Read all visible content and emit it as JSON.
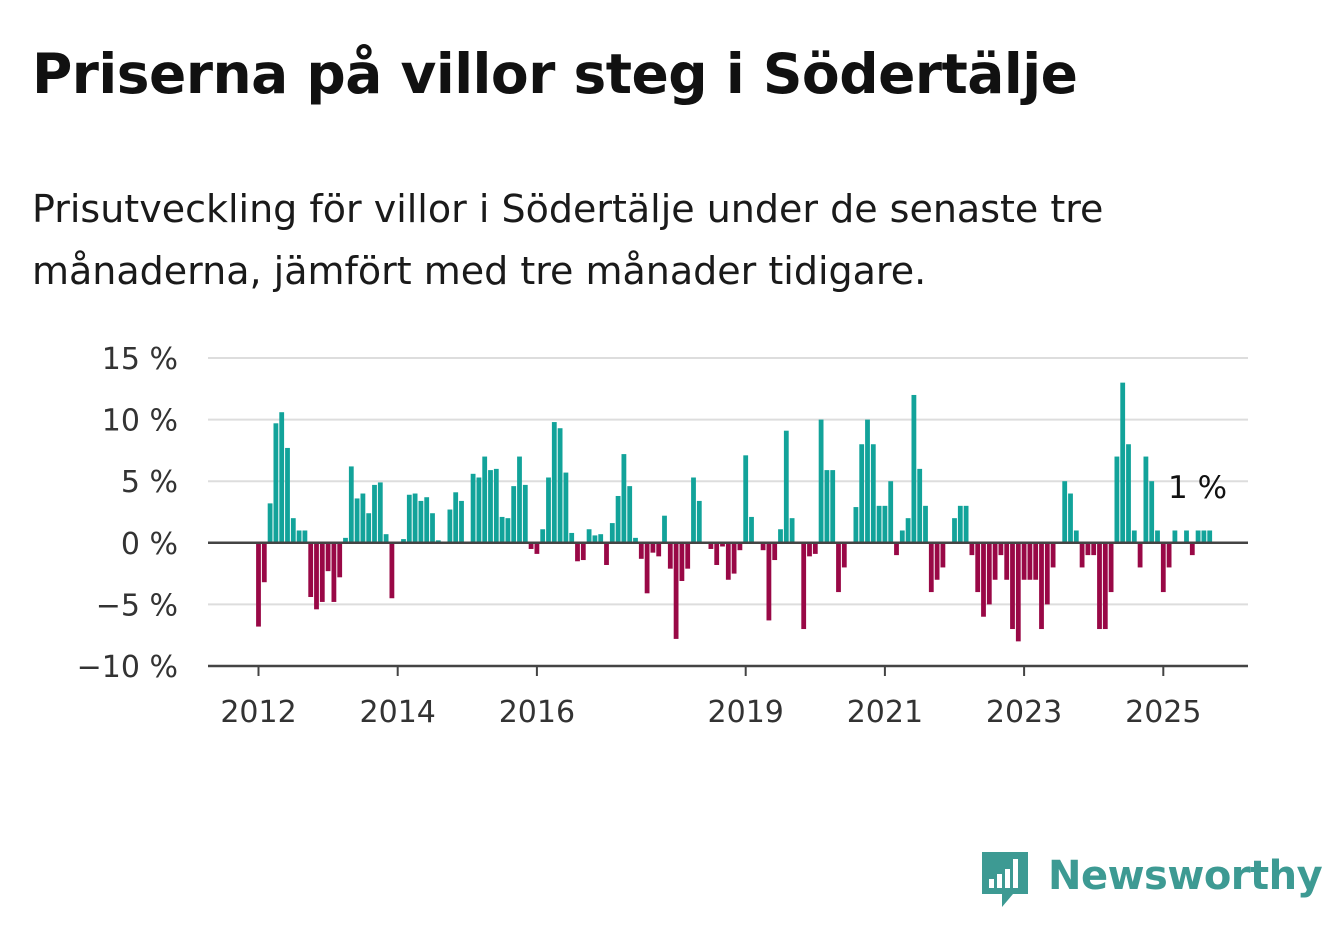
{
  "title": "Priserna på villor steg i Södertälje",
  "subtitle": "Prisutveckling för villor i Södertälje under de senaste tre månaderna, jämfört med tre månader tidigare.",
  "brand": "Newsworthy",
  "colors": {
    "positive": "#12a39a",
    "negative": "#990846",
    "grid": "#dddddd",
    "axis": "#444444",
    "brand": "#3d9a93"
  },
  "chart_data": {
    "type": "bar",
    "ylim": [
      -10,
      15
    ],
    "y_ticks": [
      15,
      10,
      5,
      0,
      -5,
      -10
    ],
    "y_tick_labels": [
      "15 %",
      "10 %",
      "5 %",
      "0 %",
      "−5 %",
      "−10 %"
    ],
    "x_tick_labels": [
      "2012",
      "2014",
      "2016",
      "2019",
      "2021",
      "2023",
      "2025"
    ],
    "x_tick_years": [
      2012,
      2014,
      2016,
      2019,
      2021,
      2023,
      2025
    ],
    "start": "2012-01",
    "frequency": "monthly",
    "grid": true,
    "annotation": "1 %",
    "values": [
      -6.8,
      -3.2,
      3.2,
      9.7,
      10.6,
      7.7,
      2.0,
      1.0,
      1.0,
      -4.4,
      -5.4,
      -4.8,
      -2.3,
      -4.8,
      -2.8,
      0.4,
      6.2,
      3.6,
      4.0,
      2.4,
      4.7,
      4.9,
      0.7,
      -4.5,
      0.0,
      0.3,
      3.9,
      4.0,
      3.4,
      3.7,
      2.4,
      0.2,
      0.0,
      2.7,
      4.1,
      3.4,
      0.0,
      5.6,
      5.3,
      7.0,
      5.9,
      6.0,
      2.1,
      2.0,
      4.6,
      7.0,
      4.7,
      -0.5,
      -0.9,
      1.1,
      5.3,
      9.8,
      9.3,
      5.7,
      0.8,
      -1.5,
      -1.4,
      1.1,
      0.6,
      0.7,
      -1.8,
      1.6,
      3.8,
      7.2,
      4.6,
      0.4,
      -1.3,
      -4.1,
      -0.8,
      -1.1,
      2.2,
      -2.1,
      -7.8,
      -3.1,
      -2.1,
      5.3,
      3.4,
      0.1,
      -0.5,
      -1.8,
      -0.3,
      -3.0,
      -2.5,
      -0.6,
      7.1,
      2.1,
      0.0,
      -0.6,
      -6.3,
      -1.4,
      1.1,
      9.1,
      2.0,
      0.0,
      -7.0,
      -1.1,
      -0.9,
      10.0,
      5.9,
      5.9,
      -4.0,
      -2.0,
      0.0,
      2.9,
      8.0,
      10.0,
      8.0,
      3.0,
      3.0,
      5.0,
      -1.0,
      1.0,
      2.0,
      12.0,
      6.0,
      3.0,
      -4.0,
      -3.0,
      -2.0,
      0.0,
      2.0,
      3.0,
      3.0,
      -1.0,
      -4.0,
      -6.0,
      -5.0,
      -3.0,
      -1.0,
      -3.0,
      -7.0,
      -8.0,
      -3.0,
      -3.0,
      -3.0,
      -7.0,
      -5.0,
      -2.0,
      0.0,
      5.0,
      4.0,
      1.0,
      -2.0,
      -1.0,
      -1.0,
      -7.0,
      -7.0,
      -4.0,
      7.0,
      13.0,
      8.0,
      1.0,
      -2.0,
      7.0,
      5.0,
      1.0,
      -4.0,
      -2.0,
      1.0,
      0.0,
      1.0,
      -1.0,
      1.0,
      1.0,
      1.0
    ]
  }
}
